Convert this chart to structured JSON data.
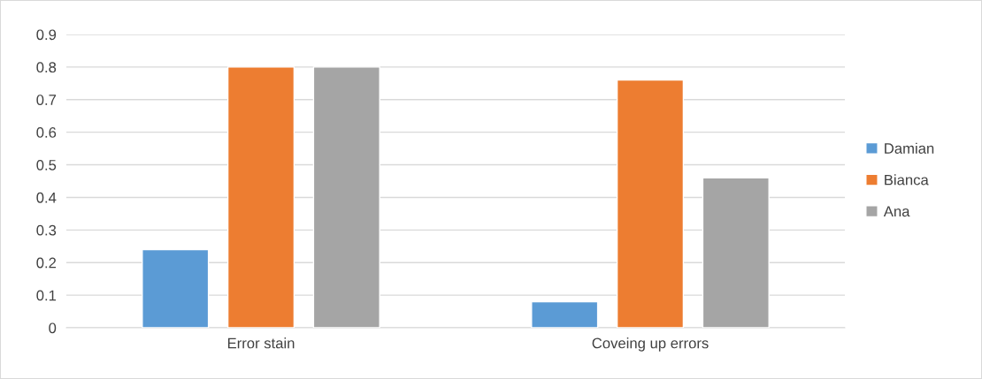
{
  "chart_data": {
    "type": "bar",
    "categories": [
      "Error stain",
      "Coveing up errors"
    ],
    "series": [
      {
        "name": "Damian",
        "color": "#5b9bd5",
        "values": [
          0.24,
          0.08
        ]
      },
      {
        "name": "Bianca",
        "color": "#ed7d31",
        "values": [
          0.8,
          0.76
        ]
      },
      {
        "name": "Ana",
        "color": "#a5a5a5",
        "values": [
          0.8,
          0.46
        ]
      }
    ],
    "ylim": [
      0,
      0.9
    ],
    "yticks": [
      0,
      0.1,
      0.2,
      0.3,
      0.4,
      0.5,
      0.6,
      0.7,
      0.8,
      0.9
    ],
    "grid": "y",
    "legend": "right"
  }
}
